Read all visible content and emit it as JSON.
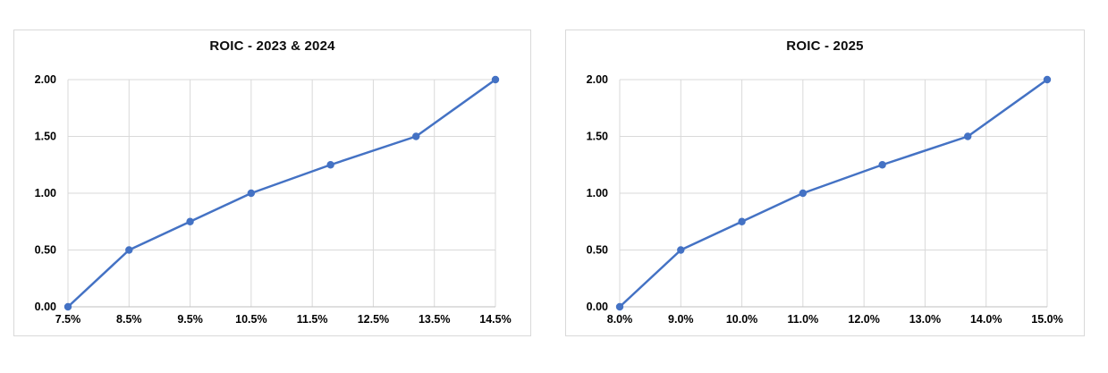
{
  "page": {
    "background_color": "#ffffff"
  },
  "chart_data": [
    {
      "type": "line",
      "title": "ROIC - 2023 & 2024",
      "xlabel": "",
      "ylabel": "",
      "xlim": [
        7.5,
        14.5
      ],
      "ylim": [
        0,
        2
      ],
      "grid": true,
      "legend": false,
      "x_tick_labels": [
        "7.5%",
        "8.5%",
        "9.5%",
        "10.5%",
        "11.5%",
        "12.5%",
        "13.5%",
        "14.5%"
      ],
      "x_tick_values": [
        7.5,
        8.5,
        9.5,
        10.5,
        11.5,
        12.5,
        13.5,
        14.5
      ],
      "y_tick_labels": [
        "0.00",
        "0.50",
        "1.00",
        "1.50",
        "2.00"
      ],
      "y_tick_values": [
        0,
        0.5,
        1,
        1.5,
        2
      ],
      "series": [
        {
          "name": "ROIC 2023 & 2024",
          "x": [
            7.5,
            8.5,
            9.5,
            10.5,
            11.8,
            13.2,
            14.5
          ],
          "y": [
            0.0,
            0.5,
            0.75,
            1.0,
            1.25,
            1.5,
            2.0
          ]
        }
      ],
      "colors": {
        "line": "#4472c4",
        "marker": "#4472c4",
        "grid": "#d9d9d9",
        "axis": "#bfbfbf",
        "border": "#d9d9d9",
        "text": "#000000"
      }
    },
    {
      "type": "line",
      "title": "ROIC - 2025",
      "xlabel": "",
      "ylabel": "",
      "xlim": [
        8.0,
        15.0
      ],
      "ylim": [
        0,
        2
      ],
      "grid": true,
      "legend": false,
      "x_tick_labels": [
        "8.0%",
        "9.0%",
        "10.0%",
        "11.0%",
        "12.0%",
        "13.0%",
        "14.0%",
        "15.0%"
      ],
      "x_tick_values": [
        8.0,
        9.0,
        10.0,
        11.0,
        12.0,
        13.0,
        14.0,
        15.0
      ],
      "y_tick_labels": [
        "0.00",
        "0.50",
        "1.00",
        "1.50",
        "2.00"
      ],
      "y_tick_values": [
        0,
        0.5,
        1,
        1.5,
        2
      ],
      "series": [
        {
          "name": "ROIC 2025",
          "x": [
            8.0,
            9.0,
            10.0,
            11.0,
            12.3,
            13.7,
            15.0
          ],
          "y": [
            0.0,
            0.5,
            0.75,
            1.0,
            1.25,
            1.5,
            2.0
          ]
        }
      ],
      "colors": {
        "line": "#4472c4",
        "marker": "#4472c4",
        "grid": "#d9d9d9",
        "axis": "#bfbfbf",
        "border": "#d9d9d9",
        "text": "#000000"
      }
    }
  ]
}
